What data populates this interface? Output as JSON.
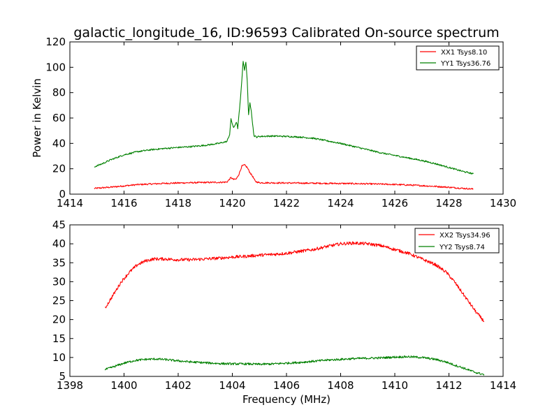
{
  "chart_data": [
    {
      "type": "line",
      "title": "galactic_longitude_16, ID:96593 Calibrated On-source spectrum",
      "xlabel": "",
      "ylabel": "Power in Kelvin",
      "xlim": [
        1414,
        1430
      ],
      "ylim": [
        0,
        120
      ],
      "xticks": [
        1414,
        1416,
        1418,
        1420,
        1422,
        1424,
        1426,
        1428,
        1430
      ],
      "yticks": [
        0,
        20,
        40,
        60,
        80,
        100,
        120
      ],
      "grid": false,
      "legend_position": "top-right",
      "series": [
        {
          "name": "XX1 Tsys8.10",
          "color": "#ff0000",
          "x": [
            1414.9,
            1415.5,
            1416.0,
            1416.5,
            1417.0,
            1417.5,
            1418.0,
            1418.5,
            1419.0,
            1419.5,
            1419.8,
            1419.95,
            1420.05,
            1420.15,
            1420.25,
            1420.35,
            1420.45,
            1420.55,
            1420.65,
            1420.75,
            1420.85,
            1421.0,
            1421.5,
            1422.0,
            1422.5,
            1423.0,
            1423.5,
            1424.0,
            1424.5,
            1425.0,
            1425.5,
            1426.0,
            1426.5,
            1427.0,
            1427.5,
            1428.0,
            1428.5,
            1428.9
          ],
          "values": [
            4.5,
            5.5,
            6.5,
            7.5,
            8.0,
            8.5,
            8.8,
            9.0,
            9.2,
            9.3,
            9.5,
            13.0,
            11.5,
            12.0,
            16.0,
            22.0,
            23.0,
            21.0,
            17.0,
            14.0,
            10.0,
            9.0,
            8.9,
            8.8,
            8.7,
            8.6,
            8.5,
            8.4,
            8.3,
            8.1,
            7.9,
            7.6,
            7.2,
            6.7,
            6.1,
            5.4,
            4.6,
            4.0
          ]
        },
        {
          "name": "YY1 Tsys36.76",
          "color": "#008000",
          "x": [
            1414.9,
            1415.2,
            1415.5,
            1416.0,
            1416.5,
            1417.0,
            1417.5,
            1418.0,
            1418.5,
            1419.0,
            1419.5,
            1419.8,
            1419.9,
            1419.95,
            1420.05,
            1420.15,
            1420.2,
            1420.3,
            1420.4,
            1420.45,
            1420.5,
            1420.55,
            1420.6,
            1420.65,
            1420.7,
            1420.75,
            1420.8,
            1420.9,
            1421.0,
            1421.5,
            1422.0,
            1422.5,
            1423.0,
            1423.5,
            1424.0,
            1424.5,
            1425.0,
            1425.5,
            1426.0,
            1426.5,
            1427.0,
            1427.5,
            1428.0,
            1428.5,
            1428.9
          ],
          "values": [
            21.5,
            24.0,
            27.0,
            31.0,
            33.5,
            35.0,
            36.0,
            36.8,
            37.5,
            38.5,
            40.0,
            41.5,
            47.0,
            59.0,
            52.0,
            57.0,
            52.0,
            75.0,
            105.0,
            98.0,
            104.0,
            90.0,
            62.0,
            72.0,
            66.0,
            55.0,
            46.0,
            45.0,
            45.5,
            45.8,
            45.5,
            45.0,
            44.0,
            42.0,
            40.0,
            37.5,
            35.0,
            32.5,
            30.5,
            28.5,
            26.5,
            24.0,
            21.0,
            18.0,
            16.0
          ]
        }
      ]
    },
    {
      "type": "line",
      "title": "",
      "xlabel": "Frequency (MHz)",
      "ylabel": "",
      "xlim": [
        1398,
        1414
      ],
      "ylim": [
        5,
        45
      ],
      "xticks": [
        1398,
        1400,
        1402,
        1404,
        1406,
        1408,
        1410,
        1412,
        1414
      ],
      "yticks": [
        5,
        10,
        15,
        20,
        25,
        30,
        35,
        40,
        45
      ],
      "grid": false,
      "legend_position": "top-right",
      "series": [
        {
          "name": "XX2 Tsys34.96",
          "color": "#ff0000",
          "x": [
            1399.3,
            1399.6,
            1399.9,
            1400.2,
            1400.5,
            1400.8,
            1401.1,
            1401.5,
            1402.0,
            1402.5,
            1403.0,
            1403.5,
            1404.0,
            1404.5,
            1405.0,
            1405.5,
            1406.0,
            1406.5,
            1407.0,
            1407.5,
            1408.0,
            1408.5,
            1409.0,
            1409.5,
            1410.0,
            1410.5,
            1411.0,
            1411.5,
            1411.9,
            1412.2,
            1412.5,
            1412.8,
            1413.0,
            1413.3
          ],
          "values": [
            23.0,
            26.5,
            30.0,
            32.5,
            34.5,
            35.5,
            36.0,
            36.0,
            35.8,
            35.8,
            36.0,
            36.2,
            36.5,
            36.7,
            37.0,
            37.2,
            37.5,
            38.0,
            38.5,
            39.3,
            40.0,
            40.2,
            40.0,
            39.5,
            38.5,
            37.5,
            36.0,
            34.5,
            32.5,
            30.0,
            27.0,
            24.0,
            22.0,
            19.5
          ]
        },
        {
          "name": "YY2 Tsys8.74",
          "color": "#008000",
          "x": [
            1399.3,
            1399.6,
            1400.0,
            1400.4,
            1400.8,
            1401.2,
            1401.6,
            1402.0,
            1402.5,
            1403.0,
            1403.5,
            1404.0,
            1404.5,
            1405.0,
            1405.5,
            1406.0,
            1406.5,
            1407.0,
            1407.5,
            1408.0,
            1408.5,
            1409.0,
            1409.5,
            1410.0,
            1410.5,
            1411.0,
            1411.5,
            1411.9,
            1412.2,
            1412.5,
            1412.8,
            1413.0,
            1413.3
          ],
          "values": [
            6.8,
            7.5,
            8.5,
            9.2,
            9.5,
            9.6,
            9.4,
            9.1,
            8.8,
            8.6,
            8.4,
            8.3,
            8.3,
            8.2,
            8.3,
            8.5,
            8.7,
            9.0,
            9.3,
            9.5,
            9.7,
            9.8,
            9.9,
            10.1,
            10.2,
            10.0,
            9.5,
            8.8,
            8.0,
            7.3,
            6.5,
            6.0,
            5.5
          ]
        }
      ]
    }
  ]
}
